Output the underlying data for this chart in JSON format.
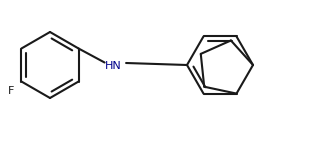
{
  "background_color": "#ffffff",
  "line_color": "#1a1a1a",
  "line_width": 1.5,
  "dbo": 0.048,
  "dbs": 0.14,
  "F_label": "F",
  "HN_label": "HN",
  "fig_width": 3.14,
  "fig_height": 1.41,
  "dpi": 100,
  "xlim": [
    0.0,
    3.14
  ],
  "ylim": [
    0.0,
    1.41
  ]
}
